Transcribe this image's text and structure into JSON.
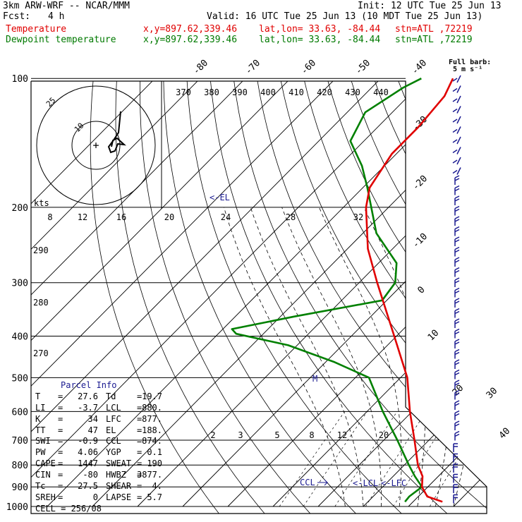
{
  "header": {
    "model": "3km ARW-WRF -- NCAR/MMM",
    "init": "Init: 12 UTC Tue 25 Jun 13",
    "fcst_label": "Fcst:",
    "fcst_value": "4 h",
    "valid": "Valid: 16 UTC Tue 25 Jun 13 (10 MDT Tue 25 Jun 13)",
    "temp_line": {
      "label": "Temperature",
      "xy": "x,y=897.62,339.46",
      "latlon": "lat,lon= 33.63, -84.44",
      "stn": "stn=ATL ,72219"
    },
    "dew_line": {
      "label": "Dewpoint temperature",
      "xy": "x,y=897.62,339.46",
      "latlon": "lat,lon= 33.63, -84.44",
      "stn": "stn=ATL ,72219"
    },
    "full_barb": "Full barb:",
    "full_barb_unit": "5 m s⁻¹"
  },
  "colors": {
    "temperature": "#e00000",
    "dewpoint": "#008000",
    "label_blue": "#1a1a90",
    "barb": "#1a1a90"
  },
  "chart_data": {
    "type": "skew-t",
    "pressure_levels": [
      "100",
      "200",
      "300",
      "400",
      "500",
      "600",
      "700",
      "800",
      "900",
      "1000"
    ],
    "temp_ticks": [
      "-80",
      "-70",
      "-60",
      "-50",
      "-40",
      "-30",
      "-20",
      "-10",
      "0",
      "10",
      "20",
      "30",
      "40"
    ],
    "theta_ticks": [
      "370",
      "380",
      "390",
      "400",
      "410",
      "420",
      "430",
      "440"
    ],
    "theta_side_ticks": [
      "290",
      "280",
      "270"
    ],
    "mixing_ratio_ticks": [
      "2",
      "3",
      "5",
      "8",
      "12",
      "20"
    ],
    "hodo_ticks": [
      "8",
      "12",
      "16",
      "20",
      "24",
      "28",
      "32"
    ],
    "hodo_unit": "kts",
    "hodo_rings": [
      "10",
      "25"
    ],
    "annotations": {
      "el": "<-EL",
      "ccl": "CCL",
      "lcl": "<-LCL",
      "lfc": "<-LFC",
      "m": "M"
    },
    "temperature_profile": [
      {
        "p": 975,
        "t": 26.5
      },
      {
        "p": 948,
        "t": 22.0
      },
      {
        "p": 900,
        "t": 18.7
      },
      {
        "p": 850,
        "t": 16.5
      },
      {
        "p": 800,
        "t": 13.0
      },
      {
        "p": 700,
        "t": 6.8
      },
      {
        "p": 600,
        "t": -0.5
      },
      {
        "p": 500,
        "t": -8.5
      },
      {
        "p": 400,
        "t": -20.5
      },
      {
        "p": 300,
        "t": -36.0
      },
      {
        "p": 250,
        "t": -45.5
      },
      {
        "p": 200,
        "t": -55.0
      },
      {
        "p": 180,
        "t": -58.5
      },
      {
        "p": 150,
        "t": -61.0
      },
      {
        "p": 130,
        "t": -61.0
      },
      {
        "p": 110,
        "t": -62.0
      },
      {
        "p": 100,
        "t": -64.0
      }
    ],
    "dewpoint_profile": [
      {
        "p": 975,
        "t": 18.2
      },
      {
        "p": 948,
        "t": 18.0
      },
      {
        "p": 900,
        "t": 18.7
      },
      {
        "p": 850,
        "t": 14.8
      },
      {
        "p": 800,
        "t": 11.0
      },
      {
        "p": 700,
        "t": 3.0
      },
      {
        "p": 600,
        "t": -6.5
      },
      {
        "p": 500,
        "t": -17.0
      },
      {
        "p": 460,
        "t": -28.0
      },
      {
        "p": 420,
        "t": -42.0
      },
      {
        "p": 395,
        "t": -56.0
      },
      {
        "p": 385,
        "t": -58.0
      },
      {
        "p": 360,
        "t": -47.0
      },
      {
        "p": 330,
        "t": -31.0
      },
      {
        "p": 300,
        "t": -32.0
      },
      {
        "p": 270,
        "t": -36.0
      },
      {
        "p": 230,
        "t": -47.0
      },
      {
        "p": 180,
        "t": -59.0
      },
      {
        "p": 160,
        "t": -65.0
      },
      {
        "p": 140,
        "t": -73.0
      },
      {
        "p": 120,
        "t": -76.0
      },
      {
        "p": 105,
        "t": -73.0
      },
      {
        "p": 100,
        "t": -71.0
      }
    ]
  },
  "parcel_info": {
    "title": "Parcel Info",
    "rows": [
      {
        "k1": "T",
        "v1": "27.6",
        "k2": "Td",
        "v2": "19.7"
      },
      {
        "k1": "LI",
        "v1": "-3.7",
        "k2": "LCL",
        "v2": "880."
      },
      {
        "k1": "K",
        "v1": "34",
        "k2": "LFC",
        "v2": "877."
      },
      {
        "k1": "TT",
        "v1": "47",
        "k2": "EL",
        "v2": "188."
      },
      {
        "k1": "SWI",
        "v1": "-0.9",
        "k2": "CCL",
        "v2": "874."
      },
      {
        "k1": "PW",
        "v1": "4.06",
        "k2": "YGP",
        "v2": "0.1"
      },
      {
        "k1": "CAPE",
        "v1": "1447",
        "k2": "SWEAT",
        "v2": "190"
      },
      {
        "k1": "CIN",
        "v1": "-80",
        "k2": "HWBZ",
        "v2": "3877."
      },
      {
        "k1": "Tc",
        "v1": "27.5",
        "k2": "SHEAR",
        "v2": "4."
      },
      {
        "k1": "SREH",
        "v1": "0",
        "k2": "LAPSE",
        "v2": "5.7"
      }
    ],
    "cell": "CELL = 256/08"
  }
}
